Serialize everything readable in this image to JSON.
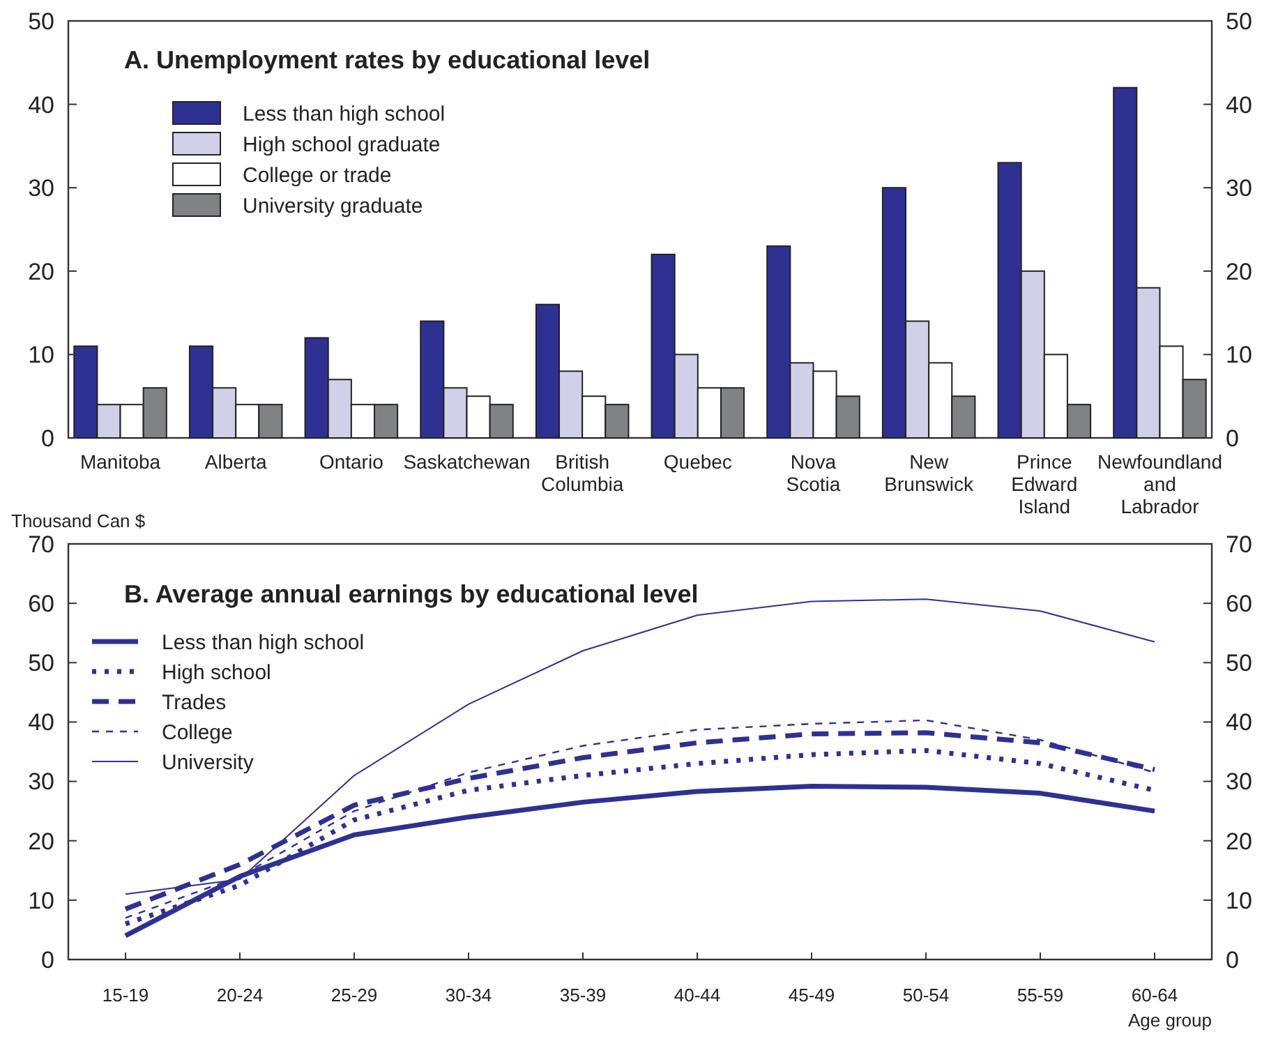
{
  "chart_data": [
    {
      "type": "bar",
      "title": "A. Unemployment rates by educational level",
      "categories": [
        "Manitoba",
        "Alberta",
        "Ontario",
        "Saskatchewan",
        "British Columbia",
        "Quebec",
        "Nova Scotia",
        "New Brunswick",
        "Prince Edward Island",
        "Newfoundland and Labrador"
      ],
      "series": [
        {
          "name": "Less than high school",
          "color": "#2e3192",
          "values": [
            11,
            11,
            12,
            14,
            16,
            22,
            23,
            30,
            33,
            42
          ]
        },
        {
          "name": "High school graduate",
          "color": "#d0d0e8",
          "values": [
            4,
            6,
            7,
            6,
            8,
            10,
            9,
            14,
            20,
            18
          ]
        },
        {
          "name": "College or trade",
          "color": "#ffffff",
          "values": [
            4,
            4,
            4,
            5,
            5,
            6,
            8,
            9,
            10,
            11
          ]
        },
        {
          "name": "University graduate",
          "color": "#808285",
          "values": [
            6,
            4,
            4,
            4,
            4,
            6,
            5,
            5,
            4,
            7
          ]
        }
      ],
      "ylim": [
        0,
        50
      ],
      "yticks": [
        0,
        10,
        20,
        30,
        40,
        50
      ],
      "y2lim": [
        0,
        50
      ],
      "y2ticks": [
        0,
        10,
        20,
        30,
        40,
        50
      ],
      "grid": false,
      "legend": "top left"
    },
    {
      "type": "line",
      "title": "B. Average annual earnings by educational level",
      "ylabel": "Thousand Can $",
      "xlabel": "Age group",
      "categories": [
        "15-19",
        "20-24",
        "25-29",
        "30-34",
        "35-39",
        "40-44",
        "45-49",
        "50-54",
        "55-59",
        "60-64"
      ],
      "series": [
        {
          "name": "Less than high school",
          "color": "#2e3192",
          "line_style": "solid",
          "values": [
            4,
            14,
            21,
            24,
            26.5,
            28.3,
            29.2,
            29,
            28,
            25
          ]
        },
        {
          "name": "High school",
          "color": "#2e3192",
          "line_style": "dotted",
          "values": [
            6,
            12.5,
            23.5,
            28.5,
            31,
            33,
            34.5,
            35.2,
            33,
            28.5
          ]
        },
        {
          "name": "Trades",
          "color": "#2e3192",
          "line_style": "dashed",
          "values": [
            8.5,
            16,
            26,
            30.5,
            34,
            36.5,
            38,
            38.2,
            36.5,
            32
          ]
        },
        {
          "name": "College",
          "color": "#2e3192",
          "line_style": "dashed",
          "values": [
            7,
            14,
            25,
            31.5,
            36,
            38.7,
            39.7,
            40.3,
            37,
            31.5
          ]
        },
        {
          "name": "University",
          "color": "#2e3192",
          "line_style": "solid",
          "values": [
            11,
            13.5,
            31,
            43,
            52,
            58,
            60.3,
            60.7,
            58.7,
            53.5
          ]
        }
      ],
      "ylim": [
        0,
        70
      ],
      "yticks": [
        0,
        10,
        20,
        30,
        40,
        50,
        60,
        70
      ],
      "y2lim": [
        0,
        70
      ],
      "y2ticks": [
        0,
        10,
        20,
        30,
        40,
        50,
        60,
        70
      ],
      "grid": false,
      "legend": "top left",
      "marker": "none"
    }
  ]
}
